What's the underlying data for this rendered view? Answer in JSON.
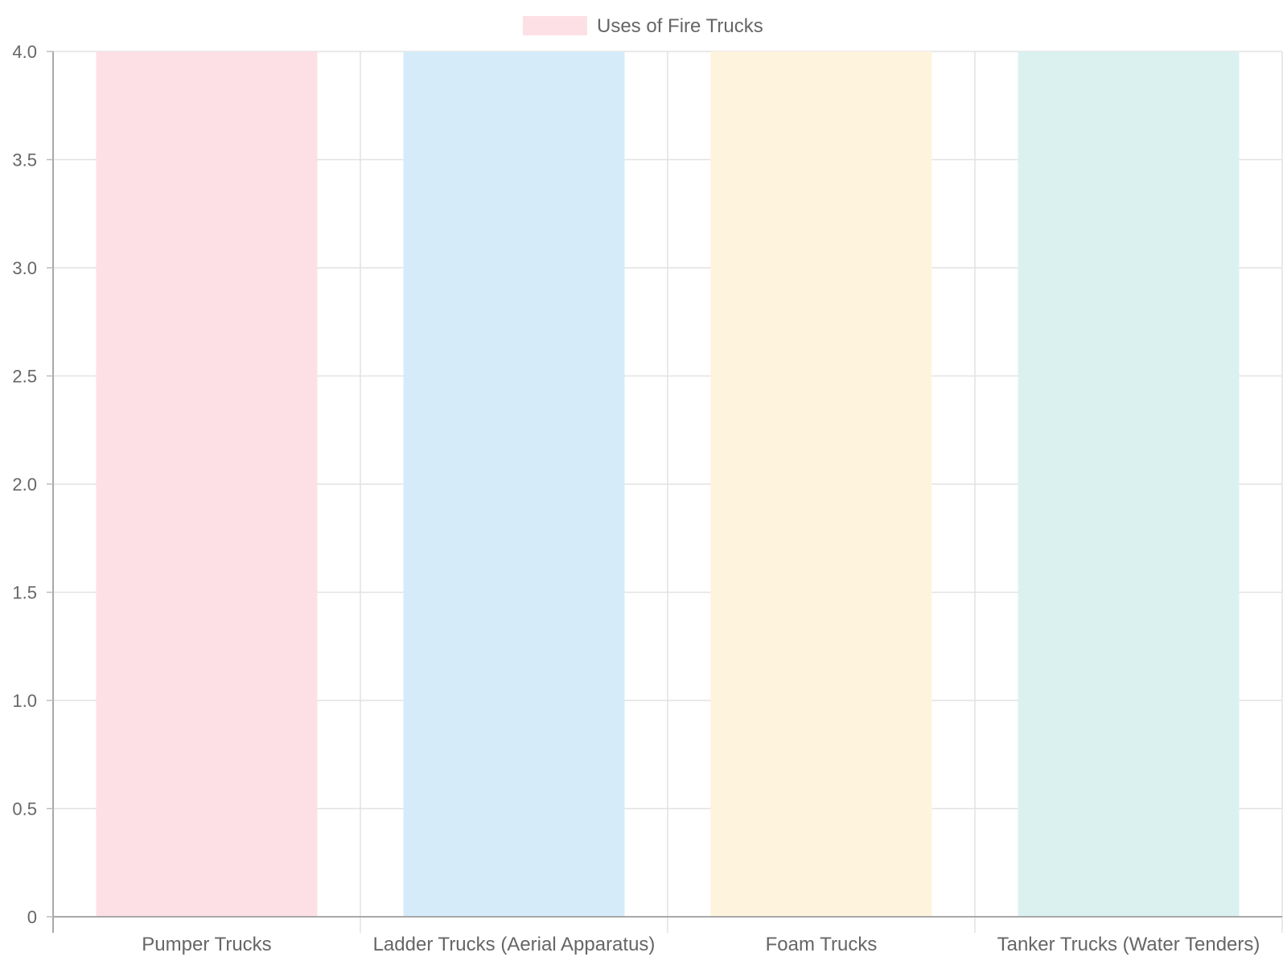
{
  "chart_data": {
    "type": "bar",
    "categories": [
      "Pumper Trucks",
      "Ladder Trucks (Aerial Apparatus)",
      "Foam Trucks",
      "Tanker Trucks (Water Tenders)"
    ],
    "series": [
      {
        "name": "Uses of Fire Trucks",
        "values": [
          4,
          4,
          4,
          4
        ]
      }
    ],
    "bar_colors": [
      "#fde0e6",
      "#d6ebf9",
      "#fef4dd",
      "#dbf1ef"
    ],
    "legend_color": "#fde0e6",
    "ylim": [
      0,
      4
    ],
    "yticks": [
      "0",
      "0.5",
      "1.0",
      "1.5",
      "2.0",
      "2.5",
      "3.0",
      "3.5",
      "4.0"
    ],
    "grid": true,
    "legend_position": "top-center",
    "title": "",
    "xlabel": "",
    "ylabel": ""
  }
}
